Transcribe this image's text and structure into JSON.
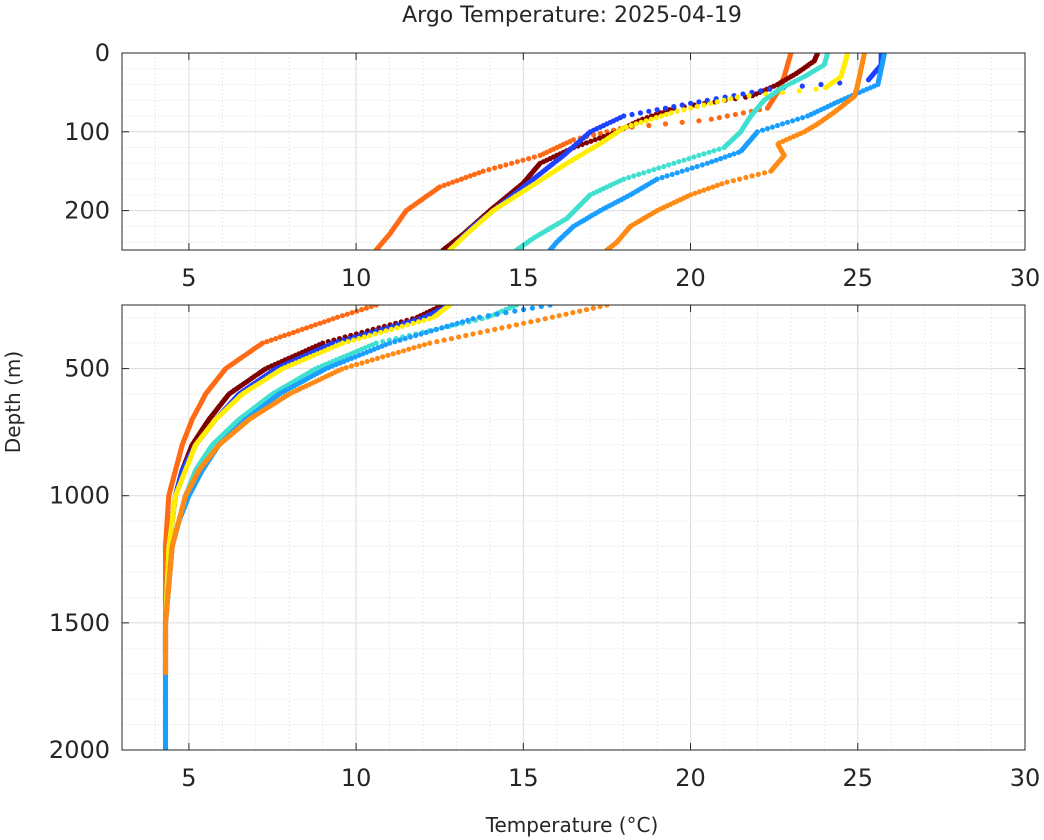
{
  "chart_data": {
    "type": "scatter",
    "title": "Argo Temperature: 2025-04-19",
    "xlabel": "Temperature (°C)",
    "ylabel": "Depth (m)",
    "grid": true,
    "minor_grid": true,
    "y_reversed": true,
    "panels": [
      {
        "id": "upper",
        "xlim": [
          3,
          30
        ],
        "ylim": [
          0,
          250
        ],
        "xticks": [
          5,
          10,
          15,
          20,
          25,
          30
        ],
        "yticks": [
          0,
          100,
          200
        ],
        "x_tick_labels": [
          "5",
          "10",
          "15",
          "20",
          "25",
          "30"
        ],
        "y_tick_labels": [
          "0",
          "100",
          "200"
        ]
      },
      {
        "id": "lower",
        "xlim": [
          3,
          30
        ],
        "ylim": [
          250,
          2000
        ],
        "xticks": [
          5,
          10,
          15,
          20,
          25,
          30
        ],
        "yticks": [
          500,
          1000,
          1500,
          2000
        ],
        "x_tick_labels": [
          "5",
          "10",
          "15",
          "20",
          "25",
          "30"
        ],
        "y_tick_labels": [
          "500",
          "1000",
          "1500",
          "2000"
        ]
      }
    ],
    "series": [
      {
        "color": "#ff6a14",
        "profile": [
          [
            0,
            23.0
          ],
          [
            15,
            22.9
          ],
          [
            30,
            22.8
          ],
          [
            50,
            22.6
          ],
          [
            70,
            22.3
          ],
          [
            85,
            20.5
          ],
          [
            95,
            18.0
          ],
          [
            110,
            16.5
          ],
          [
            130,
            15.5
          ],
          [
            150,
            13.8
          ],
          [
            170,
            12.5
          ],
          [
            200,
            11.5
          ],
          [
            230,
            11.0
          ],
          [
            250,
            10.6
          ],
          [
            300,
            9.4
          ],
          [
            400,
            7.2
          ],
          [
            500,
            6.1
          ],
          [
            600,
            5.5
          ],
          [
            700,
            5.1
          ],
          [
            800,
            4.8
          ],
          [
            900,
            4.6
          ],
          [
            1000,
            4.4
          ],
          [
            1200,
            4.3
          ],
          [
            1500,
            4.3
          ],
          [
            1700,
            4.3
          ]
        ]
      },
      {
        "color": "#800000",
        "profile": [
          [
            0,
            23.8
          ],
          [
            10,
            23.7
          ],
          [
            25,
            23.2
          ],
          [
            40,
            22.6
          ],
          [
            55,
            21.8
          ],
          [
            70,
            19.5
          ],
          [
            85,
            18.5
          ],
          [
            100,
            17.8
          ],
          [
            120,
            16.5
          ],
          [
            140,
            15.5
          ],
          [
            165,
            15.0
          ],
          [
            200,
            14.0
          ],
          [
            230,
            13.2
          ],
          [
            250,
            12.6
          ],
          [
            300,
            11.8
          ],
          [
            400,
            9.0
          ],
          [
            500,
            7.3
          ],
          [
            600,
            6.2
          ],
          [
            700,
            5.6
          ],
          [
            800,
            5.1
          ],
          [
            900,
            4.8
          ],
          [
            1000,
            4.6
          ],
          [
            1200,
            4.4
          ],
          [
            1500,
            4.3
          ],
          [
            1700,
            4.3
          ]
        ]
      },
      {
        "color": "#2040ff",
        "profile": [
          [
            0,
            25.7
          ],
          [
            15,
            25.7
          ],
          [
            35,
            25.3
          ],
          [
            45,
            22.5
          ],
          [
            60,
            20.5
          ],
          [
            80,
            18.0
          ],
          [
            100,
            17.0
          ],
          [
            130,
            16.2
          ],
          [
            160,
            15.3
          ],
          [
            190,
            14.4
          ],
          [
            220,
            13.5
          ],
          [
            250,
            12.8
          ],
          [
            300,
            12.0
          ],
          [
            400,
            9.3
          ],
          [
            500,
            7.6
          ],
          [
            600,
            6.5
          ],
          [
            700,
            5.8
          ],
          [
            800,
            5.2
          ],
          [
            900,
            4.8
          ],
          [
            1000,
            4.6
          ],
          [
            1200,
            4.4
          ],
          [
            1500,
            4.3
          ],
          [
            1700,
            4.3
          ]
        ]
      },
      {
        "color": "#ffee00",
        "profile": [
          [
            0,
            24.7
          ],
          [
            15,
            24.6
          ],
          [
            30,
            24.5
          ],
          [
            45,
            24.0
          ],
          [
            55,
            21.5
          ],
          [
            75,
            19.5
          ],
          [
            95,
            18.0
          ],
          [
            115,
            17.3
          ],
          [
            140,
            16.3
          ],
          [
            170,
            15.2
          ],
          [
            200,
            14.1
          ],
          [
            230,
            13.3
          ],
          [
            250,
            12.8
          ],
          [
            300,
            12.3
          ],
          [
            400,
            9.6
          ],
          [
            500,
            7.8
          ],
          [
            600,
            6.6
          ],
          [
            700,
            5.8
          ],
          [
            800,
            5.2
          ],
          [
            900,
            4.9
          ],
          [
            1000,
            4.6
          ],
          [
            1200,
            4.4
          ],
          [
            1500,
            4.3
          ],
          [
            1700,
            4.3
          ]
        ]
      },
      {
        "color": "#40e0d0",
        "profile": [
          [
            0,
            24.1
          ],
          [
            15,
            24.0
          ],
          [
            30,
            23.4
          ],
          [
            45,
            22.7
          ],
          [
            60,
            22.2
          ],
          [
            80,
            21.8
          ],
          [
            100,
            21.5
          ],
          [
            120,
            21.0
          ],
          [
            140,
            19.5
          ],
          [
            160,
            18.0
          ],
          [
            180,
            17.0
          ],
          [
            210,
            16.3
          ],
          [
            235,
            15.3
          ],
          [
            250,
            14.8
          ],
          [
            300,
            13.9
          ],
          [
            400,
            10.6
          ],
          [
            500,
            8.8
          ],
          [
            600,
            7.5
          ],
          [
            700,
            6.5
          ],
          [
            800,
            5.7
          ],
          [
            900,
            5.2
          ],
          [
            1000,
            4.9
          ],
          [
            1200,
            4.5
          ],
          [
            1500,
            4.3
          ],
          [
            1700,
            4.3
          ]
        ]
      },
      {
        "color": "#1a9fff",
        "profile": [
          [
            0,
            25.8
          ],
          [
            20,
            25.7
          ],
          [
            40,
            25.6
          ],
          [
            60,
            24.5
          ],
          [
            80,
            23.5
          ],
          [
            100,
            22.0
          ],
          [
            125,
            21.5
          ],
          [
            140,
            20.5
          ],
          [
            160,
            19.0
          ],
          [
            180,
            18.2
          ],
          [
            200,
            17.3
          ],
          [
            220,
            16.5
          ],
          [
            240,
            16.0
          ],
          [
            250,
            15.8
          ],
          [
            300,
            13.6
          ],
          [
            400,
            11.0
          ],
          [
            500,
            9.1
          ],
          [
            600,
            7.7
          ],
          [
            700,
            6.7
          ],
          [
            800,
            5.9
          ],
          [
            900,
            5.4
          ],
          [
            1000,
            5.0
          ],
          [
            1100,
            4.7
          ],
          [
            1200,
            4.5
          ],
          [
            1500,
            4.3
          ],
          [
            1800,
            4.3
          ],
          [
            2000,
            4.3
          ]
        ]
      },
      {
        "color": "#ff8a14",
        "profile": [
          [
            0,
            25.2
          ],
          [
            20,
            25.1
          ],
          [
            40,
            25.0
          ],
          [
            55,
            24.9
          ],
          [
            75,
            24.3
          ],
          [
            90,
            23.8
          ],
          [
            100,
            23.4
          ],
          [
            115,
            22.6
          ],
          [
            130,
            22.8
          ],
          [
            150,
            22.4
          ],
          [
            165,
            21.0
          ],
          [
            180,
            20.0
          ],
          [
            200,
            19.0
          ],
          [
            220,
            18.2
          ],
          [
            240,
            17.8
          ],
          [
            250,
            17.5
          ],
          [
            300,
            15.8
          ],
          [
            400,
            12.2
          ],
          [
            500,
            9.6
          ],
          [
            600,
            8.0
          ],
          [
            700,
            6.8
          ],
          [
            800,
            5.9
          ],
          [
            900,
            5.3
          ],
          [
            1000,
            4.9
          ],
          [
            1200,
            4.5
          ],
          [
            1500,
            4.3
          ],
          [
            1700,
            4.3
          ]
        ]
      }
    ]
  }
}
